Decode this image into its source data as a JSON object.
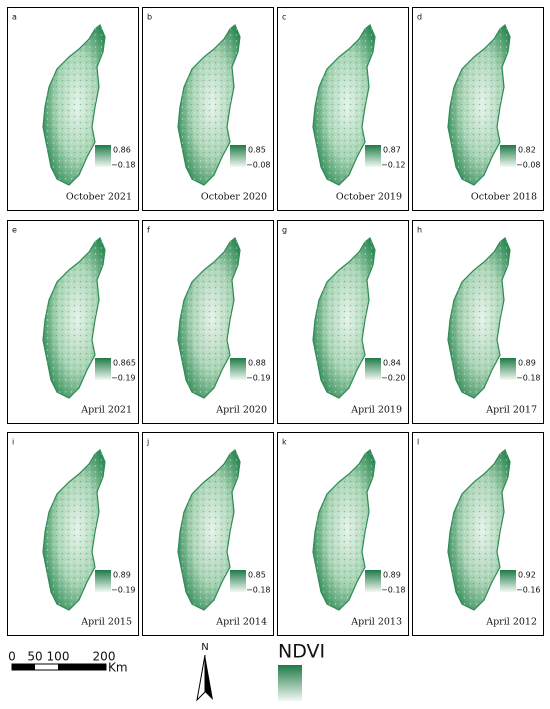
{
  "panels": [
    {
      "letter": "a",
      "max": "0.86",
      "min": "−0.18",
      "date": "October 2021"
    },
    {
      "letter": "b",
      "max": "0.85",
      "min": "−0.08",
      "date": "October 2020"
    },
    {
      "letter": "c",
      "max": "0.87",
      "min": "−0.12",
      "date": "October 2019"
    },
    {
      "letter": "d",
      "max": "0.82",
      "min": "−0.08",
      "date": "October 2018"
    },
    {
      "letter": "e",
      "max": "0.865",
      "min": "−0.19",
      "date": "April 2021"
    },
    {
      "letter": "f",
      "max": "0.88",
      "min": "−0.19",
      "date": "April 2020"
    },
    {
      "letter": "g",
      "max": "0.84",
      "min": "−0.20",
      "date": "April 2019"
    },
    {
      "letter": "h",
      "max": "0.89",
      "min": "−0.18",
      "date": "April 2017"
    },
    {
      "letter": "i",
      "max": "0.89",
      "min": "−0.19",
      "date": "April 2015"
    },
    {
      "letter": "j",
      "max": "0.85",
      "min": "−0.18",
      "date": "April 2014"
    },
    {
      "letter": "k",
      "max": "0.89",
      "min": "−0.18",
      "date": "April 2013"
    },
    {
      "letter": "l",
      "max": "0.92",
      "min": "−0.16",
      "date": "April 2012"
    }
  ],
  "scale_bar": {
    "labels": [
      "0",
      "50",
      "100",
      "200"
    ],
    "unit": "Km"
  },
  "north": "N",
  "legend": {
    "title": "NDVI"
  }
}
